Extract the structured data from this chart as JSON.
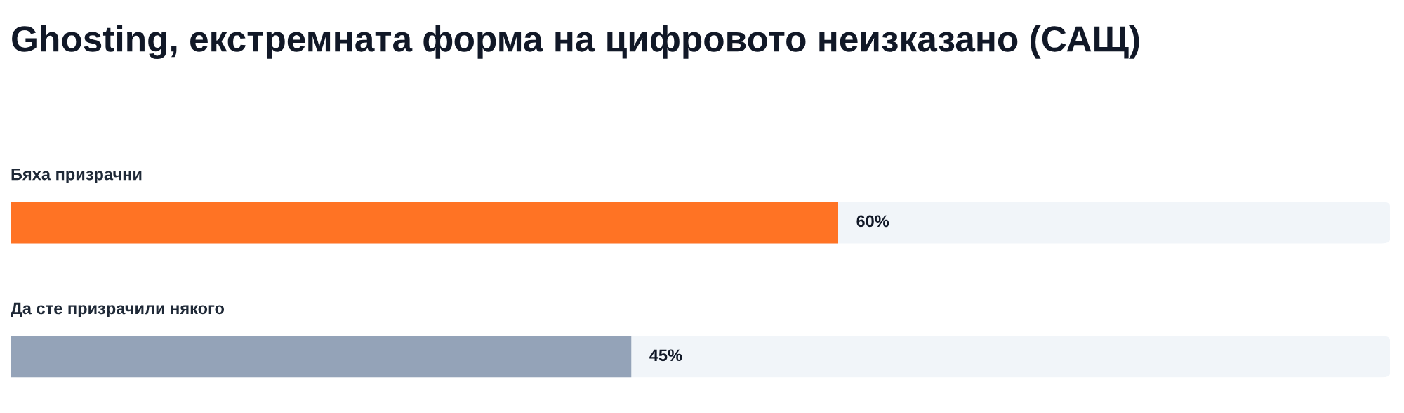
{
  "chart_data": {
    "type": "bar",
    "orientation": "horizontal",
    "title": "Ghosting, екстремната форма на цифровото неизказано (САЩ)",
    "categories": [
      "Бяха призрачни",
      "Да сте призрачили някого"
    ],
    "values": [
      60,
      45
    ],
    "colors": [
      "#ff7324",
      "#94a3b8"
    ],
    "value_labels": [
      "60%",
      "45%"
    ],
    "xlim": [
      0,
      100
    ],
    "tick_labels": false
  }
}
